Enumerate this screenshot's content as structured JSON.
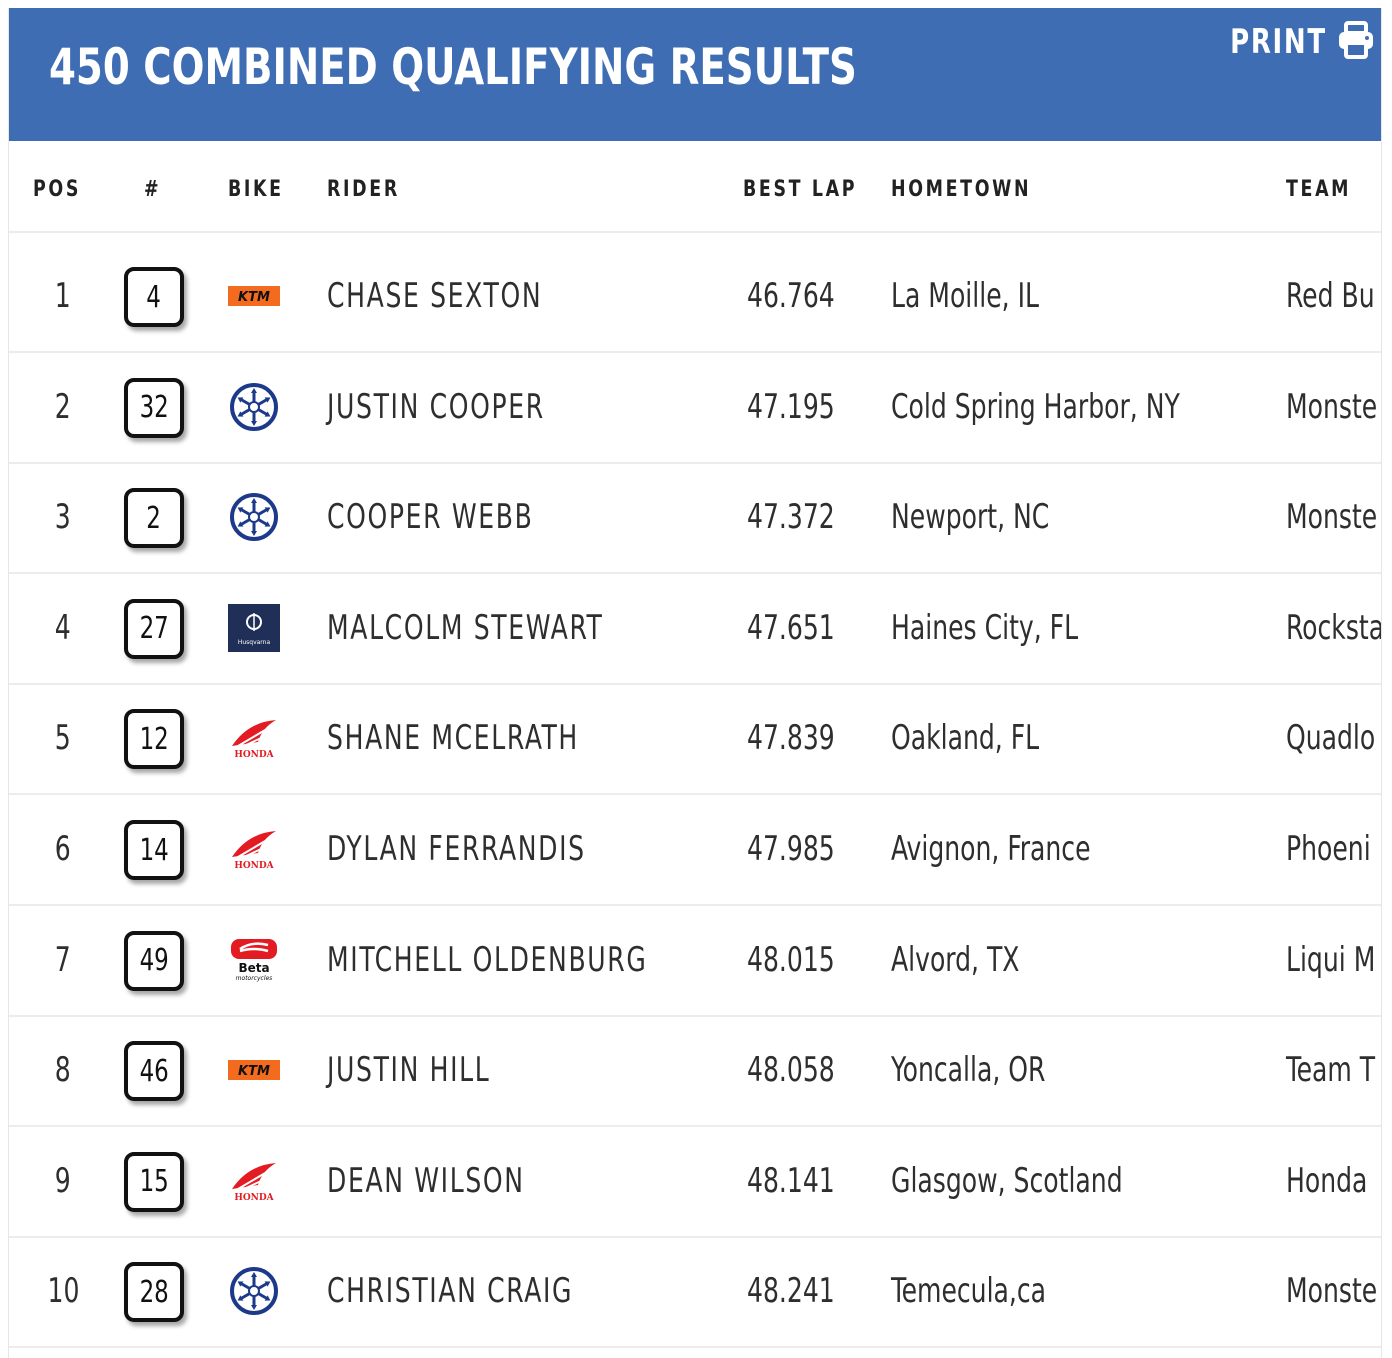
{
  "header": {
    "title": "450 COMBINED QUALIFYING RESULTS",
    "print_label": "PRINT",
    "background": "#3e6db3"
  },
  "columns": {
    "pos": "POS",
    "number": "#",
    "bike": "BIKE",
    "rider": "RIDER",
    "best_lap": "BEST LAP",
    "hometown": "HOMETOWN",
    "team": "TEAM"
  },
  "rows": [
    {
      "pos": "1",
      "number": "4",
      "bike": "ktm",
      "rider": "CHASE SEXTON",
      "best_lap": "46.764",
      "hometown": "La Moille, IL",
      "team": "Red Bu"
    },
    {
      "pos": "2",
      "number": "32",
      "bike": "yamaha",
      "rider": "JUSTIN COOPER",
      "best_lap": "47.195",
      "hometown": "Cold Spring Harbor, NY",
      "team": "Monste"
    },
    {
      "pos": "3",
      "number": "2",
      "bike": "yamaha",
      "rider": "COOPER WEBB",
      "best_lap": "47.372",
      "hometown": "Newport, NC",
      "team": "Monste"
    },
    {
      "pos": "4",
      "number": "27",
      "bike": "husqvarna",
      "rider": "MALCOLM STEWART",
      "best_lap": "47.651",
      "hometown": "Haines City, FL",
      "team": "Rocksta"
    },
    {
      "pos": "5",
      "number": "12",
      "bike": "honda",
      "rider": "SHANE MCELRATH",
      "best_lap": "47.839",
      "hometown": "Oakland, FL",
      "team": "Quadlo"
    },
    {
      "pos": "6",
      "number": "14",
      "bike": "honda",
      "rider": "DYLAN FERRANDIS",
      "best_lap": "47.985",
      "hometown": "Avignon, France",
      "team": "Phoeni"
    },
    {
      "pos": "7",
      "number": "49",
      "bike": "beta",
      "rider": "MITCHELL OLDENBURG",
      "best_lap": "48.015",
      "hometown": "Alvord, TX",
      "team": "Liqui M"
    },
    {
      "pos": "8",
      "number": "46",
      "bike": "ktm",
      "rider": "JUSTIN HILL",
      "best_lap": "48.058",
      "hometown": "Yoncalla, OR",
      "team": "Team T"
    },
    {
      "pos": "9",
      "number": "15",
      "bike": "honda",
      "rider": "DEAN WILSON",
      "best_lap": "48.141",
      "hometown": "Glasgow, Scotland",
      "team": "Honda"
    },
    {
      "pos": "10",
      "number": "28",
      "bike": "yamaha",
      "rider": "CHRISTIAN CRAIG",
      "best_lap": "48.241",
      "hometown": "Temecula,ca",
      "team": "Monste"
    }
  ],
  "logos": {
    "ktm": {
      "icon": "ktm-logo-icon",
      "text": "KTM",
      "color": "#f26b1f"
    },
    "yamaha": {
      "icon": "yamaha-logo-icon",
      "color": "#1d3a8a"
    },
    "husqvarna": {
      "icon": "husqvarna-logo-icon",
      "text": "Husqvarna",
      "color": "#1f2f57"
    },
    "honda": {
      "icon": "honda-logo-icon",
      "text": "HONDA",
      "color": "#e31b23"
    },
    "beta": {
      "icon": "beta-logo-icon",
      "text": "Beta",
      "subtext": "motorcycles",
      "color": "#e31b23"
    }
  }
}
